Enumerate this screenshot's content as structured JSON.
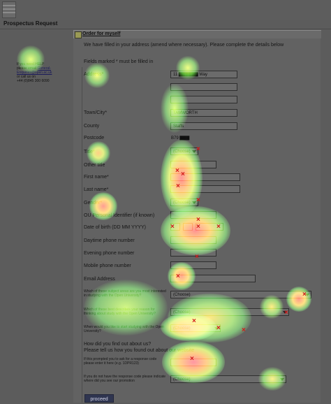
{
  "header": {
    "title": "Prospectus Request"
  },
  "help": {
    "lines": [
      "If you need HELP",
      "please email ",
      "General-",
      "Enquiries@open.ac.uk",
      "or call us on",
      "+44 (0)845 300 6090"
    ]
  },
  "panel": {
    "title": "Order for myself",
    "intro": "We have filled in your address (amend where necessary). Please complete the details below",
    "required_note": "Fields marked * must be filled in"
  },
  "fields": {
    "address_label": "Address*",
    "address_line1": "11 ▇▇▇▇▇▇ Way",
    "town_label": "Town/City*",
    "town_value": "TAMWORTH",
    "county_label": "County",
    "county_value": "Staffs",
    "postcode_label": "Postcode",
    "postcode_value": "B79 ▇▇▇",
    "title_label": "Title*",
    "title_value": "(Choose)",
    "other_title_label": "Other title",
    "first_name_label": "First name*",
    "last_name_label": "Last name*",
    "gender_label": "Gender*",
    "gender_value": "(Choose)",
    "ou_id_label": "OU Personal Identifier (if known)",
    "dob_label": "Date of birth (DD MM YYYY)",
    "daytime_label": "Daytime phone number",
    "evening_label": "Evening phone number",
    "mobile_label": "Mobile phone number",
    "email_label": "Email Address",
    "subject_label": "Which of these subject areas are you most interested in studying with the Open University?",
    "subject_value": "(Choose)",
    "reason_label": "Which of these best describes your reason for thinking about study with the Open University?",
    "reason_value": "(Choose)",
    "start_label": "When would you like to start studying with the Open University?",
    "start_value": "(Choose)",
    "found_heading": "How did you find out about us?",
    "found_sub": "Please tell us how you found out about our website",
    "promo_label": "If this prompted you to ask for a response code please enter it here (e.g. 1DPR123)",
    "noresponse_label": "If you do not have the response code please indicate where did you see our promotion",
    "noresponse_value": "(Choose)"
  },
  "proceed_label": "proceed"
}
